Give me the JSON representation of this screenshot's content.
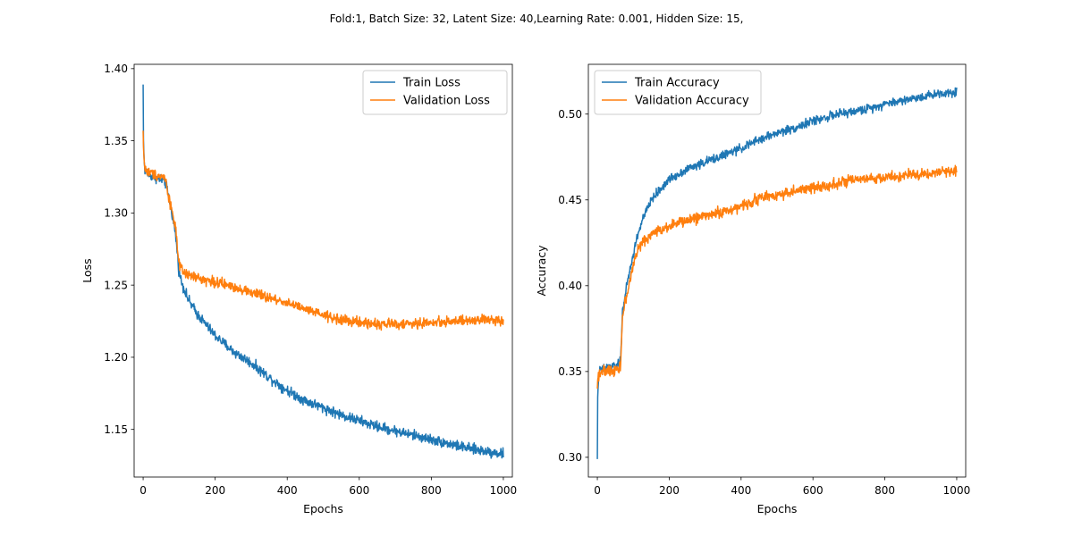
{
  "suptitle": "Fold:1,  Batch Size: 32, Latent Size: 40,Learning Rate: 0.001, Hidden Size: 15,",
  "colors": {
    "train": "#1f77b4",
    "validation": "#ff7f0e"
  },
  "chart_data": [
    {
      "type": "line",
      "title": "",
      "xlabel": "Epochs",
      "ylabel": "Loss",
      "xlim": [
        -25,
        1025
      ],
      "ylim": [
        1.117,
        1.403
      ],
      "xticks": [
        0,
        200,
        400,
        600,
        800,
        1000
      ],
      "yticks": [
        1.15,
        1.2,
        1.25,
        1.3,
        1.35,
        1.4
      ],
      "ytick_labels": [
        "1.15",
        "1.20",
        "1.25",
        "1.30",
        "1.35",
        "1.40"
      ],
      "legend_position": "upper right",
      "grid": false,
      "series": [
        {
          "name": "Train Loss",
          "color": "#1f77b4",
          "noise": 0.0025,
          "x": [
            0,
            1,
            3,
            5,
            10,
            20,
            40,
            60,
            65,
            70,
            80,
            90,
            95,
            100,
            110,
            125,
            150,
            200,
            250,
            300,
            350,
            400,
            450,
            500,
            550,
            600,
            650,
            700,
            750,
            800,
            850,
            900,
            950,
            1000
          ],
          "y": [
            1.389,
            1.35,
            1.335,
            1.33,
            1.328,
            1.326,
            1.324,
            1.322,
            1.318,
            1.312,
            1.3,
            1.285,
            1.272,
            1.258,
            1.25,
            1.24,
            1.23,
            1.215,
            1.204,
            1.196,
            1.186,
            1.177,
            1.17,
            1.165,
            1.16,
            1.156,
            1.152,
            1.149,
            1.146,
            1.143,
            1.14,
            1.137,
            1.135,
            1.133
          ]
        },
        {
          "name": "Validation Loss",
          "color": "#ff7f0e",
          "noise": 0.0025,
          "x": [
            0,
            1,
            3,
            5,
            10,
            20,
            40,
            60,
            65,
            70,
            80,
            90,
            95,
            100,
            110,
            125,
            150,
            200,
            250,
            300,
            350,
            400,
            450,
            500,
            550,
            600,
            650,
            700,
            750,
            800,
            850,
            900,
            950,
            1000
          ],
          "y": [
            1.357,
            1.345,
            1.335,
            1.331,
            1.329,
            1.328,
            1.326,
            1.325,
            1.32,
            1.312,
            1.302,
            1.29,
            1.275,
            1.264,
            1.259,
            1.257,
            1.255,
            1.252,
            1.249,
            1.245,
            1.241,
            1.238,
            1.233,
            1.229,
            1.226,
            1.224,
            1.223,
            1.223,
            1.223,
            1.224,
            1.225,
            1.225,
            1.226,
            1.226
          ]
        }
      ]
    },
    {
      "type": "line",
      "title": "",
      "xlabel": "Epochs",
      "ylabel": "Accuracy",
      "xlim": [
        -25,
        1025
      ],
      "ylim": [
        0.2885,
        0.529
      ],
      "xticks": [
        0,
        200,
        400,
        600,
        800,
        1000
      ],
      "yticks": [
        0.3,
        0.35,
        0.4,
        0.45,
        0.5
      ],
      "ytick_labels": [
        "0.30",
        "0.35",
        "0.40",
        "0.45",
        "0.50"
      ],
      "legend_position": "upper left",
      "grid": false,
      "series": [
        {
          "name": "Train Accuracy",
          "color": "#1f77b4",
          "noise": 0.0018,
          "x": [
            0,
            1,
            3,
            5,
            10,
            20,
            40,
            60,
            65,
            70,
            80,
            90,
            100,
            110,
            125,
            150,
            200,
            250,
            300,
            350,
            400,
            450,
            500,
            550,
            600,
            650,
            700,
            750,
            800,
            850,
            900,
            950,
            1000
          ],
          "y": [
            0.299,
            0.335,
            0.345,
            0.35,
            0.351,
            0.352,
            0.353,
            0.354,
            0.358,
            0.385,
            0.398,
            0.408,
            0.418,
            0.428,
            0.438,
            0.45,
            0.462,
            0.468,
            0.472,
            0.476,
            0.48,
            0.485,
            0.489,
            0.492,
            0.496,
            0.499,
            0.501,
            0.503,
            0.506,
            0.508,
            0.51,
            0.512,
            0.513
          ]
        },
        {
          "name": "Validation Accuracy",
          "color": "#ff7f0e",
          "noise": 0.0022,
          "x": [
            0,
            1,
            3,
            5,
            10,
            20,
            40,
            60,
            65,
            70,
            80,
            90,
            100,
            110,
            125,
            150,
            200,
            250,
            300,
            350,
            400,
            450,
            500,
            550,
            600,
            650,
            700,
            750,
            800,
            850,
            900,
            950,
            1000
          ],
          "y": [
            0.34,
            0.345,
            0.348,
            0.349,
            0.35,
            0.35,
            0.351,
            0.352,
            0.355,
            0.382,
            0.393,
            0.402,
            0.412,
            0.42,
            0.425,
            0.43,
            0.435,
            0.438,
            0.441,
            0.443,
            0.446,
            0.451,
            0.453,
            0.455,
            0.457,
            0.459,
            0.461,
            0.462,
            0.463,
            0.464,
            0.465,
            0.466,
            0.467
          ]
        }
      ]
    }
  ]
}
